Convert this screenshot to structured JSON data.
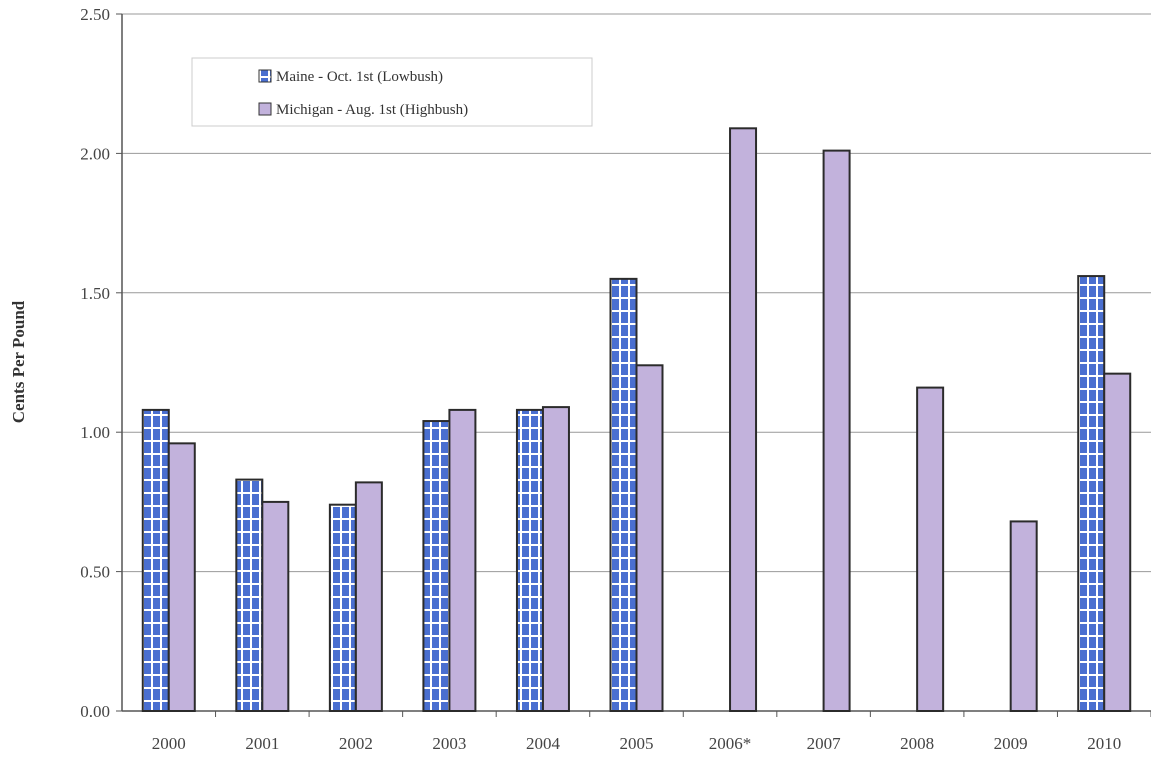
{
  "chart_data": {
    "type": "bar",
    "title": "",
    "xlabel": "",
    "ylabel": "Cents Per Pound",
    "ylim": [
      0,
      2.5
    ],
    "yticks": [
      "0.00",
      "0.50",
      "1.00",
      "1.50",
      "2.00",
      "2.50"
    ],
    "ytick_values": [
      0,
      0.5,
      1,
      1.5,
      2,
      2.5
    ],
    "grid": true,
    "legend_placement": "top-left",
    "categories": [
      "2000",
      "2001",
      "2002",
      "2003",
      "2004",
      "2005",
      "2006*",
      "2007",
      "2008",
      "2009",
      "2010"
    ],
    "series": [
      {
        "name": "Maine - Oct. 1st (Lowbush)",
        "color": "#4a6fd0",
        "pattern": "white-grid",
        "values": [
          1.08,
          0.83,
          0.74,
          1.04,
          1.08,
          1.55,
          null,
          null,
          null,
          null,
          1.56
        ]
      },
      {
        "name": "Michigan - Aug. 1st (Highbush)",
        "color": "#c2b2dc",
        "pattern": "solid",
        "values": [
          0.96,
          0.75,
          0.82,
          1.08,
          1.09,
          1.24,
          2.09,
          2.01,
          1.16,
          0.68,
          1.21
        ]
      }
    ]
  }
}
